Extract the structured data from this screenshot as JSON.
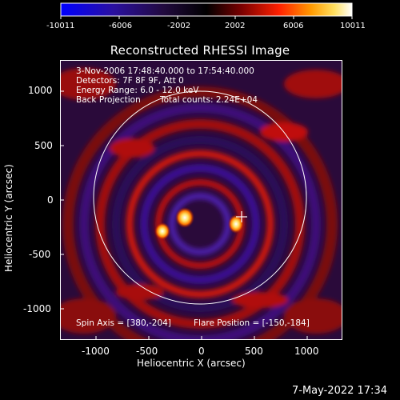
{
  "colorbar": {
    "tick_labels": [
      "-10011",
      "-6006",
      "-2002",
      "2002",
      "6006",
      "10011"
    ],
    "colors": [
      "#0000ff",
      "#3a0a7a",
      "#000000",
      "#8a0000",
      "#ff2000",
      "#ff9a00",
      "#ffe060",
      "#ffffff"
    ]
  },
  "plot": {
    "title": "Reconstructed RHESSI Image",
    "info_lines": [
      "3-Nov-2006 17:48:40.000 to 17:54:40.000",
      "Detectors: 7F 8F 9F, Att 0",
      "Energy Range: 6.0 - 12.0 keV"
    ],
    "back_projection_label": "Back Projection",
    "total_counts_label": "Total counts: 2.24E+04",
    "spin_axis": "Spin Axis = [380,-204]",
    "flare_position": "Flare Position = [-150,-184]",
    "xlabel": "Heliocentric X (arcsec)",
    "ylabel": "Heliocentric Y (arcsec)",
    "x_ticks": [
      "-1000",
      "-500",
      "0",
      "500",
      "1000"
    ],
    "y_ticks": [
      "1000",
      "500",
      "0",
      "-500",
      "-1000"
    ]
  },
  "footer": {
    "timestamp": "7-May-2022 17:34"
  }
}
